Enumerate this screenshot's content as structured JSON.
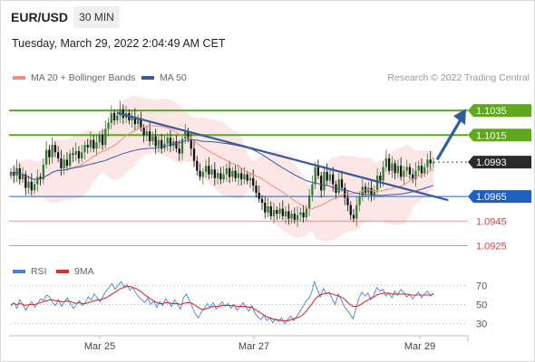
{
  "header": {
    "symbol": "EUR/USD",
    "timeframe": "30 MIN",
    "datetime": "Tuesday, March 29, 2022 2:04:49 AM CET",
    "credit": "Research © 2022 Trading Central"
  },
  "colors": {
    "up": "#2e7d32",
    "down": "#111111",
    "ma20": "#f28b82",
    "band_fill": "#fde3e3",
    "ma50": "#3c5a99",
    "resistance": "#5fa81b",
    "support_blue": "#1f5fbf",
    "support_red": "#e04040",
    "arrow": "#2f5ea8",
    "rsi": "#4a7fd4",
    "rsi_ma": "#d93030"
  },
  "chart_data": [
    {
      "type": "candlestick",
      "legend": [
        "MA 20 + Bollinger Bands",
        "MA 50"
      ],
      "x_ticks": [
        "Mar 25",
        "Mar 27",
        "Mar 29"
      ],
      "ylim": [
        1.0915,
        1.1055
      ],
      "levels": [
        {
          "label": "1.1035",
          "value": 1.1035,
          "kind": "resistance"
        },
        {
          "label": "1.1015",
          "value": 1.1015,
          "kind": "resistance"
        },
        {
          "label": "1.0993",
          "value": 1.0993,
          "kind": "current"
        },
        {
          "label": "1.0965",
          "value": 1.0965,
          "kind": "support_blue"
        },
        {
          "label": "1.0945",
          "value": 1.0945,
          "kind": "support_red"
        },
        {
          "label": "1.0925",
          "value": 1.0925,
          "kind": "support_red"
        }
      ],
      "candle_closes": [
        1.0985,
        1.0982,
        1.0988,
        1.0979,
        1.0983,
        1.0972,
        1.0977,
        1.097,
        1.0975,
        1.0981,
        1.0979,
        1.0991,
        1.1003,
        1.0997,
        1.1007,
        1.1001,
        1.0996,
        1.0988,
        1.0995,
        1.099,
        1.1,
        1.0999,
        1.1002,
        1.0996,
        1.1001,
        1.1007,
        1.1005,
        1.1011,
        1.1004,
        1.1009,
        1.1015,
        1.1007,
        1.102,
        1.1025,
        1.1033,
        1.1027,
        1.1031,
        1.1036,
        1.1029,
        1.1033,
        1.1027,
        1.103,
        1.1024,
        1.1028,
        1.1021,
        1.1015,
        1.1018,
        1.101,
        1.1014,
        1.1006,
        1.1011,
        1.1004,
        1.1008,
        1.1013,
        1.1006,
        1.101,
        1.1004,
        1.1,
        1.1012,
        1.1018,
        1.1012,
        1.1004,
        1.0994,
        1.0986,
        1.0981,
        1.0985,
        1.099,
        1.0983,
        1.0987,
        1.098,
        1.0984,
        1.0979,
        1.0983,
        1.0988,
        1.0981,
        1.0986,
        1.098,
        1.0984,
        1.0979,
        1.0983,
        1.0978,
        1.098,
        1.0974,
        1.0968,
        1.0963,
        1.096,
        1.0952,
        1.0957,
        1.0949,
        1.0954,
        1.0951,
        1.0955,
        1.0949,
        1.0953,
        1.0947,
        1.0951,
        1.0946,
        1.095,
        1.0952,
        1.0948,
        1.0955,
        1.0966,
        1.0975,
        1.0989,
        1.0982,
        1.097,
        1.0985,
        1.0978,
        1.0983,
        1.0975,
        1.0968,
        1.0979,
        1.0972,
        1.0964,
        1.0958,
        1.095,
        1.0947,
        1.0958,
        1.0965,
        1.0973,
        1.0968,
        1.0972,
        1.0966,
        1.097,
        1.0982,
        1.0978,
        1.0989,
        1.0996,
        1.0986,
        1.0992,
        1.0984,
        1.099,
        1.0981,
        1.0986,
        1.0989,
        1.0983,
        1.0979,
        1.0986,
        1.099,
        1.0984,
        1.0989,
        1.0995,
        1.0992,
        1.0993
      ],
      "trendline": {
        "from_index": 36,
        "from_price": 1.1033,
        "to_index": 148,
        "to_price": 1.0962
      },
      "projection_arrow": {
        "from_price": 1.0995,
        "to_price": 1.1035
      }
    },
    {
      "type": "line",
      "legend": [
        "RSI",
        "9MA"
      ],
      "y_ticks": [
        70,
        50,
        30
      ],
      "ylim": [
        20,
        80
      ],
      "rsi_values": [
        48,
        52,
        46,
        55,
        50,
        44,
        49,
        53,
        47,
        51,
        56,
        54,
        60,
        58,
        52,
        49,
        55,
        48,
        53,
        57,
        51,
        46,
        50,
        54,
        49,
        52,
        58,
        55,
        61,
        57,
        53,
        59,
        64,
        68,
        72,
        66,
        70,
        74,
        69,
        71,
        65,
        68,
        62,
        58,
        55,
        52,
        57,
        50,
        54,
        47,
        53,
        49,
        56,
        52,
        48,
        55,
        50,
        45,
        57,
        61,
        54,
        47,
        40,
        36,
        42,
        46,
        51,
        47,
        52,
        45,
        49,
        53,
        48,
        51,
        46,
        50,
        44,
        48,
        52,
        47,
        43,
        49,
        41,
        37,
        34,
        39,
        33,
        36,
        31,
        35,
        32,
        36,
        30,
        34,
        38,
        33,
        37,
        42,
        47,
        53,
        56,
        62,
        74,
        66,
        58,
        67,
        61,
        63,
        56,
        50,
        61,
        55,
        48,
        44,
        40,
        35,
        46,
        57,
        63,
        59,
        62,
        55,
        60,
        68,
        64,
        66,
        59,
        62,
        57,
        64,
        60,
        66,
        63,
        58,
        61,
        56,
        60,
        63,
        57,
        61,
        64,
        59,
        62
      ],
      "rsi_ma_values": [
        50,
        51,
        50,
        51,
        50,
        49,
        50,
        50,
        50,
        51,
        52,
        53,
        54,
        55,
        55,
        54,
        54,
        53,
        53,
        54,
        53,
        52,
        51,
        52,
        51,
        51,
        52,
        53,
        54,
        55,
        55,
        56,
        57,
        59,
        61,
        63,
        65,
        67,
        68,
        69,
        69,
        68,
        67,
        65,
        63,
        60,
        58,
        56,
        54,
        52,
        51,
        51,
        52,
        52,
        51,
        51,
        51,
        50,
        51,
        52,
        52,
        51,
        49,
        47,
        45,
        45,
        46,
        47,
        48,
        48,
        48,
        49,
        49,
        49,
        49,
        49,
        48,
        48,
        48,
        48,
        47,
        47,
        45,
        43,
        41,
        39,
        37,
        36,
        35,
        34,
        34,
        33,
        33,
        33,
        34,
        35,
        36,
        37,
        39,
        42,
        46,
        50,
        55,
        58,
        60,
        61,
        62,
        62,
        61,
        60,
        59,
        58,
        56,
        53,
        50,
        48,
        48,
        49,
        51,
        53,
        55,
        57,
        58,
        60,
        61,
        62,
        62,
        62,
        61,
        61,
        61,
        61,
        61,
        61,
        60,
        60,
        60,
        60,
        60,
        60,
        60,
        60,
        61
      ]
    }
  ]
}
